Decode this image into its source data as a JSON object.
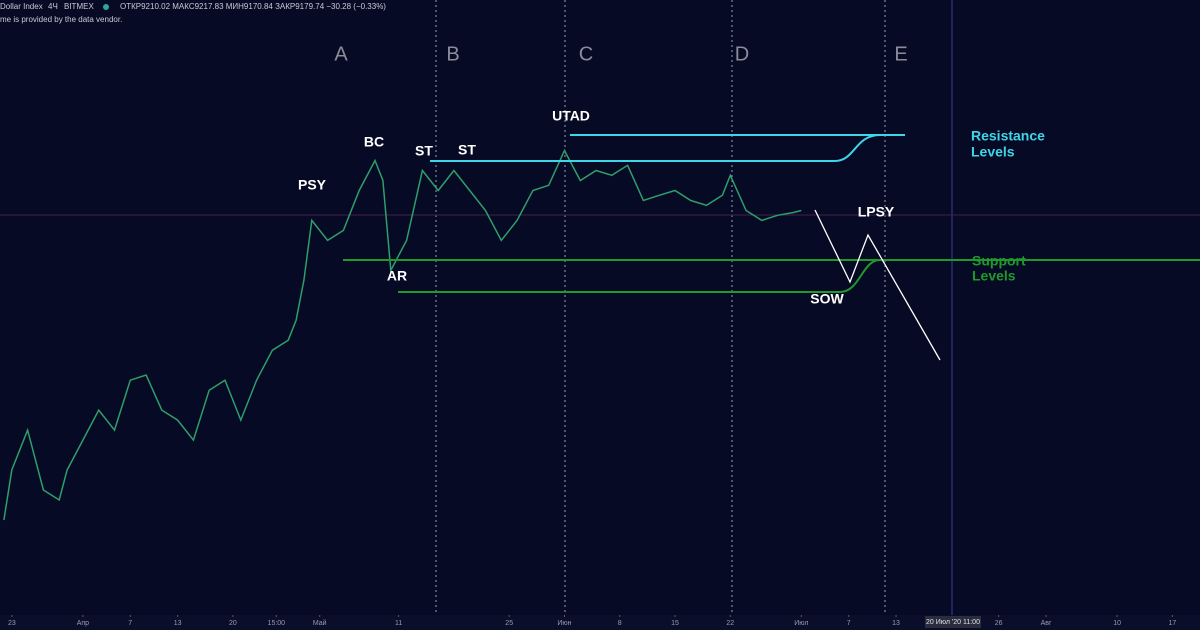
{
  "header": {
    "symbol": "Dollar Index",
    "interval": "4Ч",
    "exchange": "BITMEX",
    "ohlc": "ОТКР9210.02  МАКС9217.83  МИН9170.84  ЗАКР9179.74  −30.28 (−0.33%)",
    "note": "me is provided by the data vendor."
  },
  "chart_data": {
    "type": "line",
    "color": "#2e9e6a",
    "x": [
      0,
      1,
      3,
      5,
      7,
      8,
      10,
      12,
      14,
      16,
      18,
      20,
      22,
      24,
      26,
      28,
      30,
      32,
      34,
      36,
      37,
      38,
      39,
      41,
      43,
      45,
      47,
      48,
      49,
      51,
      53,
      55,
      57,
      59,
      61,
      63,
      65,
      67,
      69,
      71,
      73,
      75,
      77,
      79,
      81,
      83,
      85,
      87,
      89,
      91,
      92,
      94,
      96,
      98,
      100,
      101
    ],
    "values": [
      8418,
      8543,
      8643,
      8493,
      8468,
      8543,
      8618,
      8693,
      8643,
      8768,
      8781,
      8693,
      8668,
      8618,
      8743,
      8768,
      8668,
      8768,
      8843,
      8868,
      8918,
      9018,
      9168,
      9118,
      9143,
      9243,
      9318,
      9268,
      9043,
      9118,
      9293,
      9243,
      9293,
      9243,
      9193,
      9118,
      9168,
      9243,
      9256,
      9343,
      9268,
      9293,
      9281,
      9306,
      9218,
      9231,
      9243,
      9218,
      9206,
      9231,
      9281,
      9193,
      9168,
      9181,
      9188,
      9193
    ],
    "xlim": [
      -0.5,
      151.5
    ],
    "ylim": [
      8180,
      9720
    ],
    "xticks": [
      {
        "value": 1,
        "label": "23"
      },
      {
        "value": 10,
        "label": "Апр"
      },
      {
        "value": 16,
        "label": "7"
      },
      {
        "value": 22,
        "label": "13"
      },
      {
        "value": 29,
        "label": "20"
      },
      {
        "value": 34.5,
        "label": "15:00"
      },
      {
        "value": 40,
        "label": "Май"
      },
      {
        "value": 50,
        "label": "11"
      },
      {
        "value": 64,
        "label": "25"
      },
      {
        "value": 71,
        "label": "Июн"
      },
      {
        "value": 78,
        "label": "8"
      },
      {
        "value": 85,
        "label": "15"
      },
      {
        "value": 92,
        "label": "22"
      },
      {
        "value": 101,
        "label": "Июл"
      },
      {
        "value": 107,
        "label": "7"
      },
      {
        "value": 113,
        "label": "13"
      },
      {
        "value": 126,
        "label": "26"
      },
      {
        "value": 132,
        "label": "Авг"
      },
      {
        "value": 141,
        "label": "10"
      },
      {
        "value": 148,
        "label": "17"
      }
    ],
    "cursor_label": "20 Июл '20   11:00",
    "phases": [
      "A",
      "B",
      "C",
      "D",
      "E"
    ],
    "annotations": [
      "PSY",
      "BC",
      "ST",
      "ST",
      "AR",
      "UTAD",
      "LPSY",
      "SOW"
    ],
    "resistance_label": [
      "Resistance",
      "Levels"
    ],
    "support_label": [
      "Support",
      "Levels"
    ]
  }
}
